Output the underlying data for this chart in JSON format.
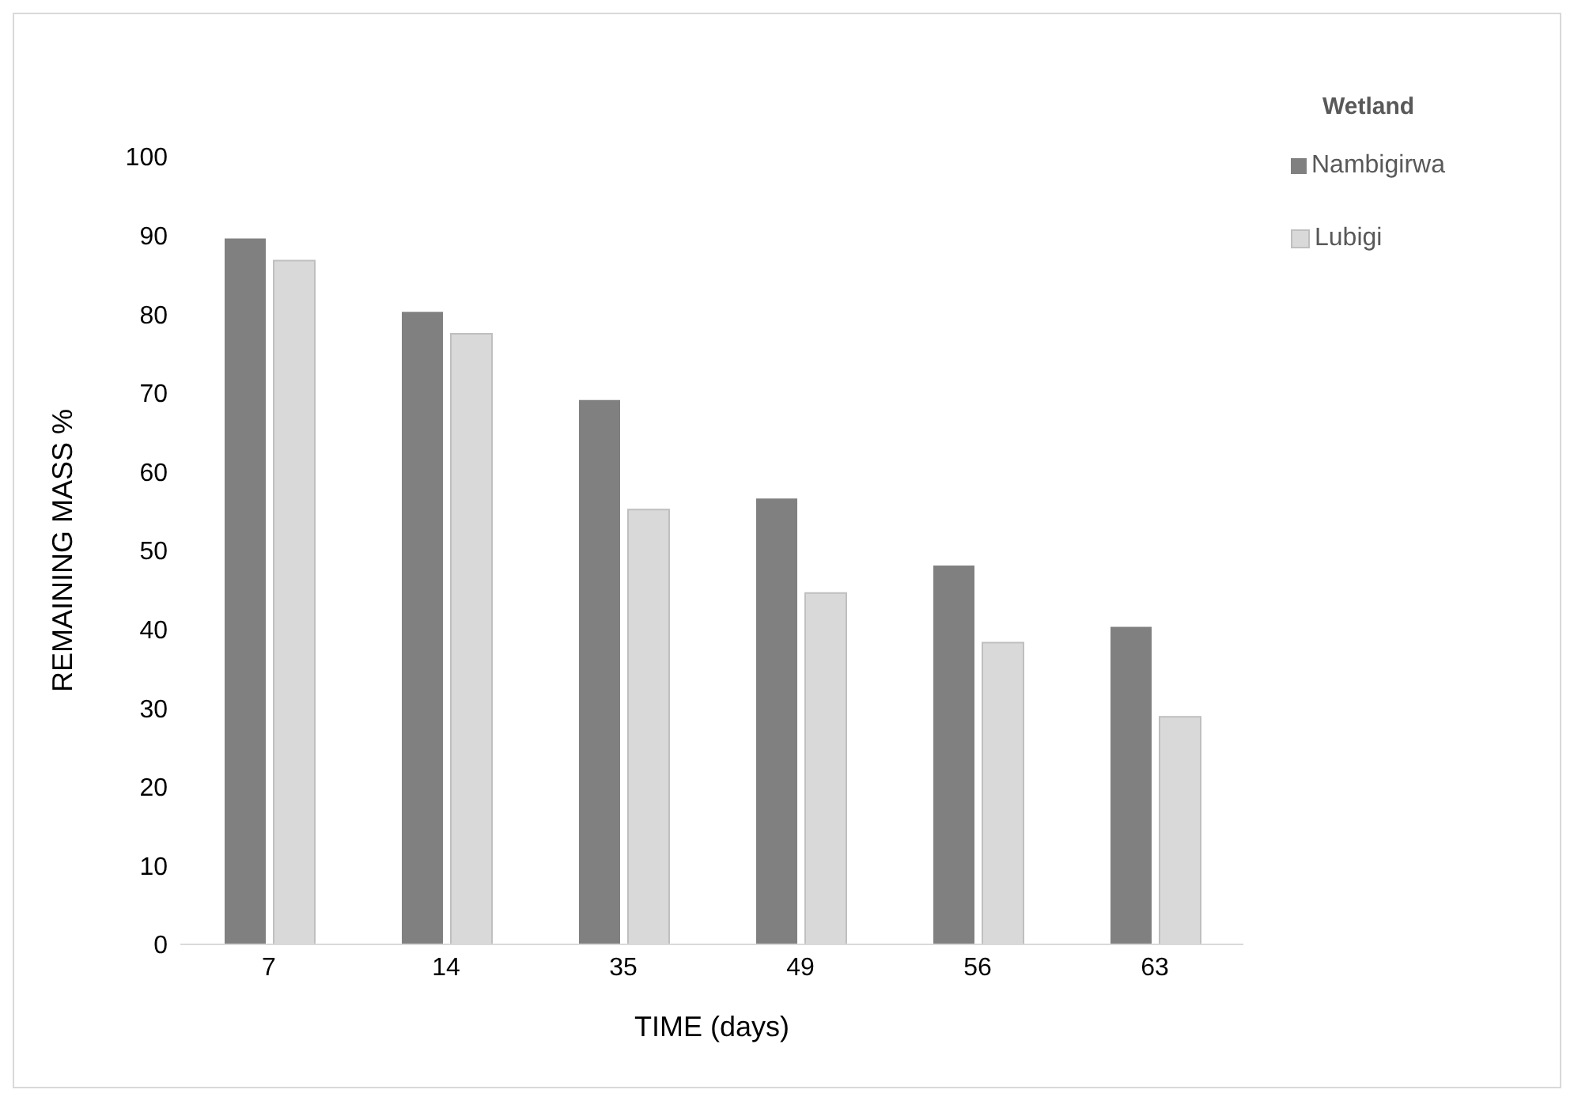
{
  "chart_data": {
    "type": "bar",
    "xlabel": "TIME (days)",
    "ylabel": "REMAINING MASS %",
    "legend_title": "Wetland",
    "categories": [
      "7",
      "14",
      "35",
      "49",
      "56",
      "63"
    ],
    "series": [
      {
        "name": "Nambigirwa",
        "color": "#808080",
        "values": [
          89.6,
          80.3,
          69.1,
          56.6,
          48.1,
          40.3
        ]
      },
      {
        "name": "Lubigi",
        "color": "#d9d9d9",
        "values": [
          86.8,
          77.5,
          55.2,
          44.6,
          38.3,
          28.9
        ]
      }
    ],
    "ylim": [
      0,
      100
    ],
    "yticks": [
      0,
      10,
      20,
      30,
      40,
      50,
      60,
      70,
      80,
      90,
      100
    ],
    "grid": false,
    "legend": "top right"
  }
}
